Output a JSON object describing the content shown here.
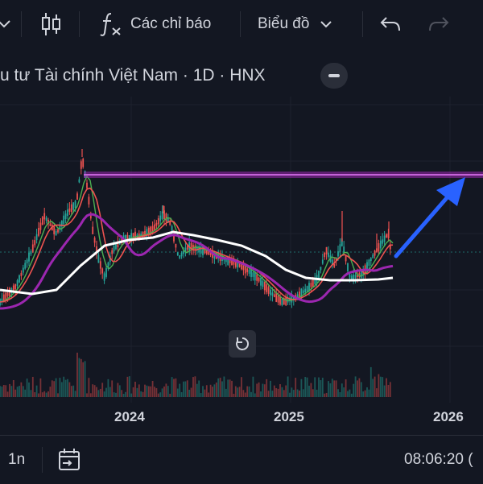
{
  "toolbar": {
    "indicators_label": "Các chỉ báo",
    "chart_menu_label": "Biểu đồ",
    "icons": [
      "chevron-down-icon",
      "candles-icon",
      "fx-icon",
      "undo-icon",
      "redo-icon"
    ]
  },
  "legend": {
    "symbol_title": "u tư Tài chính Việt Nam · 1D · HNX"
  },
  "chart_data": {
    "type": "candlestick",
    "x_ticks": [
      "2024",
      "2025",
      "2026"
    ],
    "overlays": [
      "horizontal-level-line",
      "trend-arrow",
      "moving-averages",
      "volume-bars"
    ],
    "colors": {
      "background": "#131722",
      "up": "#26a69a",
      "down": "#ef5350",
      "level_line": "#9c27b0",
      "ma_slow": "#ffffff",
      "ma_mid": "#9c27b0",
      "ma_fast_red": "#ef5350",
      "ma_fast_green": "#4caf50",
      "arrow": "#2962ff"
    }
  },
  "bottom_bar": {
    "range_label": "1n",
    "time_label": "08:06:20 ("
  }
}
